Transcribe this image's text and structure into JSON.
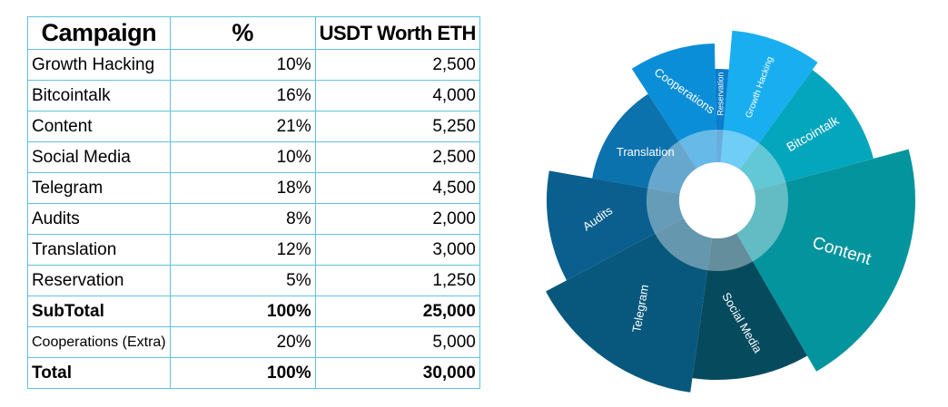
{
  "table": {
    "headers": [
      "Campaign",
      "%",
      "USDT Worth ETH"
    ],
    "rows": [
      [
        "Growth Hacking",
        "10%",
        "2,500"
      ],
      [
        "Bitcointalk",
        "16%",
        "4,000"
      ],
      [
        "Content",
        "21%",
        "5,250"
      ],
      [
        "Social Media",
        "10%",
        "2,500"
      ],
      [
        "Telegram",
        "18%",
        "4,500"
      ],
      [
        "Audits",
        "8%",
        "2,000"
      ],
      [
        "Translation",
        "12%",
        "3,000"
      ],
      [
        "Reservation",
        "5%",
        "1,250"
      ],
      [
        "SubTotal",
        "100%",
        "25,000"
      ],
      [
        "Cooperations (Extra)",
        "20%",
        "5,000"
      ],
      [
        "Total",
        "100%",
        "30,000"
      ]
    ]
  },
  "chart_data": [
    {
      "type": "table",
      "columns": [
        "Campaign",
        "%",
        "USDT Worth ETH"
      ],
      "rows": [
        [
          "Growth Hacking",
          10,
          2500
        ],
        [
          "Bitcointalk",
          16,
          4000
        ],
        [
          "Content",
          21,
          5250
        ],
        [
          "Social Media",
          10,
          2500
        ],
        [
          "Telegram",
          18,
          4500
        ],
        [
          "Audits",
          8,
          2000
        ],
        [
          "Translation",
          12,
          3000
        ],
        [
          "Reservation",
          5,
          1250
        ],
        [
          "SubTotal",
          100,
          25000
        ],
        [
          "Cooperations (Extra)",
          20,
          5000
        ],
        [
          "Total",
          100,
          30000
        ]
      ]
    },
    {
      "type": "pie",
      "slices": [
        {
          "label": "Growth Hacking",
          "value": 10,
          "color": "#19aef0"
        },
        {
          "label": "Bitcointalk",
          "value": 16,
          "color": "#04a6bd"
        },
        {
          "label": "Content",
          "value": 21,
          "color": "#04949e"
        },
        {
          "label": "Social Media",
          "value": 10,
          "color": "#064a5e"
        },
        {
          "label": "Telegram",
          "value": 18,
          "color": "#07587c"
        },
        {
          "label": "Audits",
          "value": 8,
          "color": "#0a5f8e"
        },
        {
          "label": "Translation",
          "value": 12,
          "color": "#0c72ae"
        },
        {
          "label": "Cooperations",
          "value": 20,
          "color": "#0a8ed8"
        },
        {
          "label": "Reservation",
          "value": 5,
          "color": "#0b7dcc"
        }
      ]
    }
  ]
}
